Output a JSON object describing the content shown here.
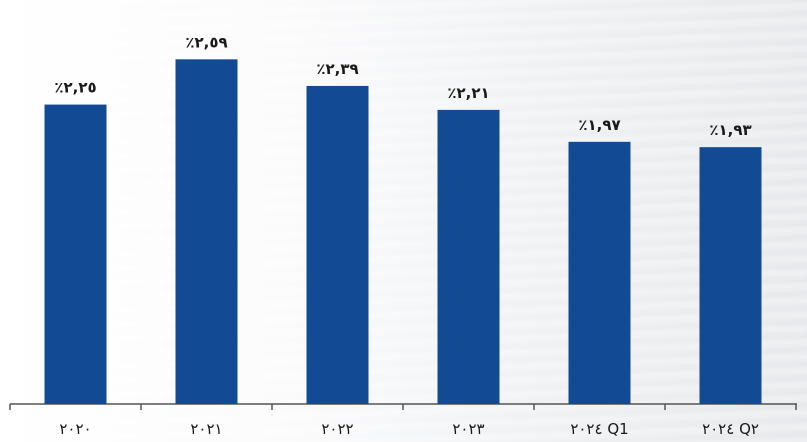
{
  "chart_data": {
    "type": "bar",
    "categories": [
      "٢٠٢٠",
      "٢٠٢١",
      "٢٠٢٢",
      "٢٠٢٣",
      "٢٠٢٤ Q1",
      "٢٠٢٤ Q٢"
    ],
    "values": [
      2.25,
      2.59,
      2.39,
      2.21,
      1.97,
      1.93
    ],
    "data_labels": [
      "٪٢,٢٥",
      "٪٢,٥٩",
      "٪٢,٣٩",
      "٪٢,٢١",
      "٪١,٩٧",
      "٪١,٩٣"
    ],
    "title": "",
    "xlabel": "",
    "ylabel": "",
    "ylim": [
      0,
      2.6
    ],
    "grid": false,
    "legend": "none",
    "bar_color": "#124a94",
    "background": "#f2f3f5"
  }
}
